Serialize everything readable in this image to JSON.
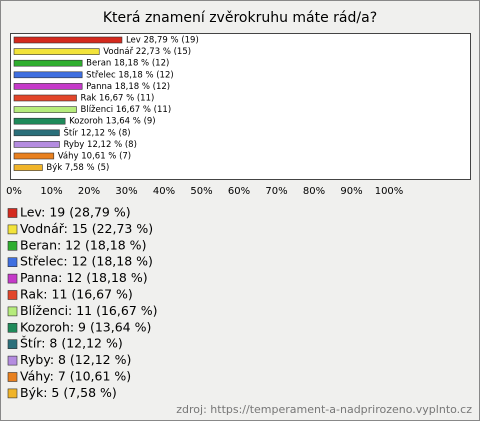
{
  "chart_data": {
    "type": "bar",
    "orientation": "horizontal",
    "title": "Která znamení zvěrokruhu máte rád/a?",
    "categories": [
      "Lev",
      "Vodnář",
      "Beran",
      "Střelec",
      "Panna",
      "Rak",
      "Blíženci",
      "Kozoroh",
      "Štír",
      "Ryby",
      "Váhy",
      "Býk"
    ],
    "values": [
      28.79,
      22.73,
      18.18,
      18.18,
      18.18,
      16.67,
      16.67,
      13.64,
      12.12,
      12.12,
      10.61,
      7.58
    ],
    "value_labels": [
      "Lev 28,79 % (19)",
      "Vodnář 22,73 % (15)",
      "Beran 18,18 % (12)",
      "Střelec 18,18 % (12)",
      "Panna 18,18 % (12)",
      "Rak 16,67 % (11)",
      "Blíženci 16,67 % (11)",
      "Kozoroh 13,64 % (9)",
      "Štír 12,12 % (8)",
      "Ryby 12,12 % (8)",
      "Váhy 10,61 % (7)",
      "Býk 7,58 % (5)"
    ],
    "legend_labels": [
      "Lev: 19 (28,79 %)",
      "Vodnář: 15 (22,73 %)",
      "Beran: 12 (18,18 %)",
      "Střelec: 12 (18,18 %)",
      "Panna: 12 (18,18 %)",
      "Rak: 11 (16,67 %)",
      "Blíženci: 11 (16,67 %)",
      "Kozoroh: 9 (13,64 %)",
      "Štír: 8 (12,12 %)",
      "Ryby: 8 (12,12 %)",
      "Váhy: 7 (10,61 %)",
      "Býk: 5 (7,58 %)"
    ],
    "colors": [
      "#d42a1e",
      "#f2e33a",
      "#2fae2f",
      "#3f6fe0",
      "#c53ac9",
      "#e2452a",
      "#b6ec7c",
      "#1f8a5a",
      "#2a6f7a",
      "#b48ce0",
      "#e8801f",
      "#f0b429"
    ],
    "xlim": [
      0,
      100
    ],
    "xticks": [
      {
        "value": 0,
        "label": "0%"
      },
      {
        "value": 10,
        "label": "10%"
      },
      {
        "value": 20,
        "label": "20%"
      },
      {
        "value": 30,
        "label": "30%"
      },
      {
        "value": 40,
        "label": "40%"
      },
      {
        "value": 50,
        "label": "50%"
      },
      {
        "value": 60,
        "label": "60%"
      },
      {
        "value": 70,
        "label": "70%"
      },
      {
        "value": 80,
        "label": "80%"
      },
      {
        "value": 90,
        "label": "90%"
      },
      {
        "value": 100,
        "label": "100%"
      }
    ],
    "source": "zdroj: https://temperament-a-nadprirozeno.vyplnto.cz"
  }
}
